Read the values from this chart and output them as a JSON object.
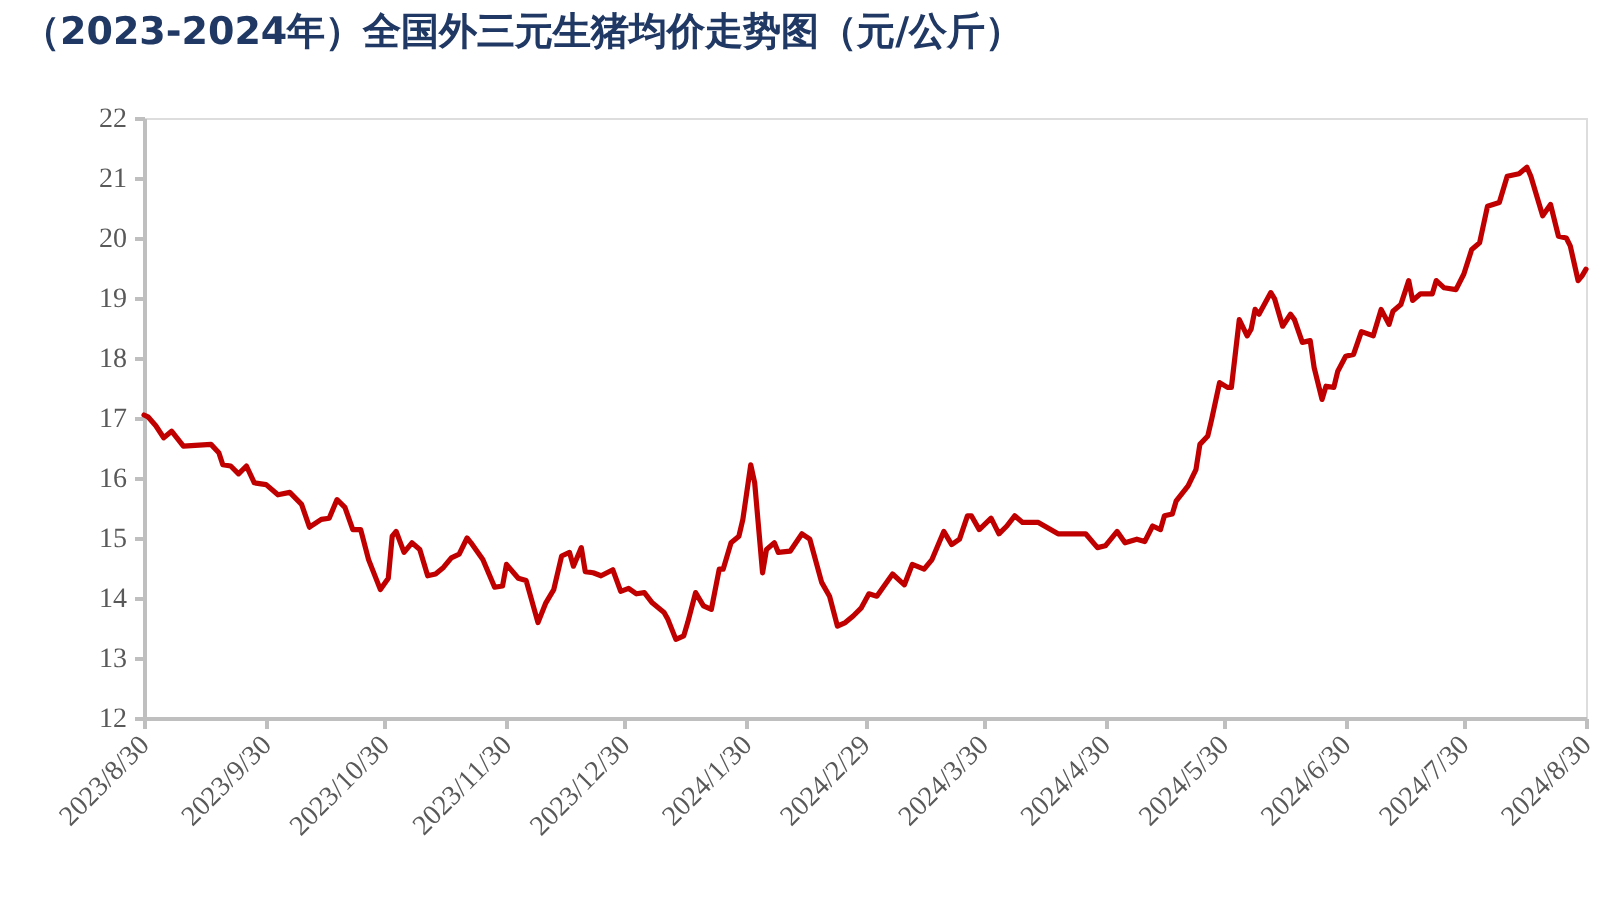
{
  "chart_data": {
    "type": "line",
    "title": "（2023-2024年）全国外三元生猪均价走势图（元/公斤）",
    "x": [
      "2023-08-30",
      "2023-08-31",
      "2023-09-02",
      "2023-09-04",
      "2023-09-06",
      "2023-09-09",
      "2023-09-16",
      "2023-09-18",
      "2023-09-19",
      "2023-09-21",
      "2023-09-23",
      "2023-09-25",
      "2023-09-27",
      "2023-09-30",
      "2023-10-03",
      "2023-10-06",
      "2023-10-09",
      "2023-10-11",
      "2023-10-14",
      "2023-10-16",
      "2023-10-18",
      "2023-10-20",
      "2023-10-22",
      "2023-10-24",
      "2023-10-26",
      "2023-10-29",
      "2023-10-31",
      "2023-11-01",
      "2023-11-02",
      "2023-11-04",
      "2023-11-06",
      "2023-11-08",
      "2023-11-10",
      "2023-11-12",
      "2023-11-14",
      "2023-11-16",
      "2023-11-18",
      "2023-11-20",
      "2023-11-21",
      "2023-11-24",
      "2023-11-27",
      "2023-11-29",
      "2023-11-30",
      "2023-12-03",
      "2023-12-05",
      "2023-12-08",
      "2023-12-10",
      "2023-12-12",
      "2023-12-14",
      "2023-12-16",
      "2023-12-17",
      "2023-12-19",
      "2023-12-20",
      "2023-12-22",
      "2023-12-24",
      "2023-12-27",
      "2023-12-29",
      "2023-12-31",
      "2024-01-02",
      "2024-01-04",
      "2024-01-06",
      "2024-01-09",
      "2024-01-10",
      "2024-01-12",
      "2024-01-14",
      "2024-01-15",
      "2024-01-17",
      "2024-01-19",
      "2024-01-21",
      "2024-01-23",
      "2024-01-24",
      "2024-01-26",
      "2024-01-28",
      "2024-01-29",
      "2024-01-31",
      "2024-02-01",
      "2024-02-03",
      "2024-02-04",
      "2024-02-06",
      "2024-02-07",
      "2024-02-10",
      "2024-02-13",
      "2024-02-15",
      "2024-02-18",
      "2024-02-20",
      "2024-02-22",
      "2024-02-24",
      "2024-02-26",
      "2024-02-28",
      "2024-03-01",
      "2024-03-03",
      "2024-03-07",
      "2024-03-10",
      "2024-03-12",
      "2024-03-15",
      "2024-03-17",
      "2024-03-20",
      "2024-03-22",
      "2024-03-24",
      "2024-03-26",
      "2024-03-27",
      "2024-03-29",
      "2024-04-01",
      "2024-04-03",
      "2024-04-05",
      "2024-04-07",
      "2024-04-09",
      "2024-04-13",
      "2024-04-18",
      "2024-04-22",
      "2024-04-25",
      "2024-04-28",
      "2024-04-30",
      "2024-05-03",
      "2024-05-05",
      "2024-05-08",
      "2024-05-10",
      "2024-05-12",
      "2024-05-14",
      "2024-05-15",
      "2024-05-17",
      "2024-05-18",
      "2024-05-21",
      "2024-05-23",
      "2024-05-24",
      "2024-05-26",
      "2024-05-27",
      "2024-05-29",
      "2024-05-31",
      "2024-06-01",
      "2024-06-03",
      "2024-06-05",
      "2024-06-06",
      "2024-06-07",
      "2024-06-08",
      "2024-06-11",
      "2024-06-12",
      "2024-06-14",
      "2024-06-16",
      "2024-06-17",
      "2024-06-19",
      "2024-06-21",
      "2024-06-22",
      "2024-06-24",
      "2024-06-25",
      "2024-06-27",
      "2024-06-28",
      "2024-06-30",
      "2024-07-02",
      "2024-07-04",
      "2024-07-07",
      "2024-07-09",
      "2024-07-11",
      "2024-07-12",
      "2024-07-14",
      "2024-07-16",
      "2024-07-17",
      "2024-07-19",
      "2024-07-22",
      "2024-07-23",
      "2024-07-25",
      "2024-07-28",
      "2024-07-30",
      "2024-08-01",
      "2024-08-03",
      "2024-08-05",
      "2024-08-08",
      "2024-08-10",
      "2024-08-13",
      "2024-08-15",
      "2024-08-16",
      "2024-08-19",
      "2024-08-21",
      "2024-08-23",
      "2024-08-25",
      "2024-08-26",
      "2024-08-28",
      "2024-08-29",
      "2024-08-30"
    ],
    "series": [
      {
        "color": "#c00000",
        "values": [
          17.05,
          17.02,
          16.87,
          16.67,
          16.78,
          16.53,
          16.56,
          16.42,
          16.22,
          16.2,
          16.07,
          16.2,
          15.92,
          15.89,
          15.72,
          15.76,
          15.56,
          15.18,
          15.31,
          15.33,
          15.64,
          15.51,
          15.14,
          15.14,
          14.64,
          14.14,
          14.33,
          15.03,
          15.11,
          14.76,
          14.92,
          14.81,
          14.37,
          14.4,
          14.51,
          14.67,
          14.73,
          15.0,
          14.92,
          14.64,
          14.18,
          14.2,
          14.56,
          14.33,
          14.29,
          13.59,
          13.92,
          14.14,
          14.7,
          14.76,
          14.53,
          14.84,
          14.44,
          14.42,
          14.37,
          14.47,
          14.11,
          14.16,
          14.07,
          14.09,
          13.92,
          13.76,
          13.64,
          13.31,
          13.37,
          13.59,
          14.09,
          13.87,
          13.81,
          14.48,
          14.48,
          14.92,
          15.03,
          15.31,
          16.22,
          15.92,
          14.42,
          14.81,
          14.92,
          14.76,
          14.78,
          15.07,
          14.98,
          14.26,
          14.03,
          13.53,
          13.59,
          13.7,
          13.83,
          14.07,
          14.03,
          14.4,
          14.22,
          14.56,
          14.48,
          14.64,
          15.11,
          14.89,
          14.98,
          15.37,
          15.37,
          15.14,
          15.33,
          15.07,
          15.2,
          15.37,
          15.26,
          15.26,
          15.07,
          15.07,
          15.07,
          14.84,
          14.87,
          15.11,
          14.92,
          14.98,
          14.94,
          15.2,
          15.14,
          15.37,
          15.4,
          15.62,
          15.87,
          16.14,
          16.56,
          16.7,
          16.98,
          17.59,
          17.51,
          17.51,
          18.64,
          18.37,
          18.48,
          18.81,
          18.73,
          19.09,
          18.98,
          18.53,
          18.73,
          18.64,
          18.26,
          18.29,
          17.84,
          17.31,
          17.53,
          17.51,
          17.78,
          18.03,
          18.06,
          18.44,
          18.37,
          18.81,
          18.56,
          18.78,
          18.89,
          19.29,
          18.96,
          19.07,
          19.07,
          19.29,
          19.17,
          19.14,
          19.4,
          19.81,
          19.92,
          20.53,
          20.59,
          21.03,
          21.07,
          21.18,
          21.03,
          20.37,
          20.56,
          20.03,
          20.0,
          19.87,
          19.29,
          19.37,
          19.48
        ]
      }
    ],
    "xlim": [
      "2023-08-30",
      "2024-08-30"
    ],
    "xticks": [
      {
        "value": "2023-08-30",
        "label": "2023/8/30"
      },
      {
        "value": "2023-09-30",
        "label": "2023/9/30"
      },
      {
        "value": "2023-10-30",
        "label": "2023/10/30"
      },
      {
        "value": "2023-11-30",
        "label": "2023/11/30"
      },
      {
        "value": "2023-12-30",
        "label": "2023/12/30"
      },
      {
        "value": "2024-01-30",
        "label": "2024/1/30"
      },
      {
        "value": "2024-02-29",
        "label": "2024/2/29"
      },
      {
        "value": "2024-03-30",
        "label": "2024/3/30"
      },
      {
        "value": "2024-04-30",
        "label": "2024/4/30"
      },
      {
        "value": "2024-05-30",
        "label": "2024/5/30"
      },
      {
        "value": "2024-06-30",
        "label": "2024/6/30"
      },
      {
        "value": "2024-07-30",
        "label": "2024/7/30"
      },
      {
        "value": "2024-08-30",
        "label": "2024/8/30"
      }
    ],
    "ylim": [
      12,
      22
    ],
    "yticks": [
      12,
      13,
      14,
      15,
      16,
      17,
      18,
      19,
      20,
      21,
      22
    ],
    "grid": false,
    "marker": "none",
    "line_style": "solid"
  }
}
